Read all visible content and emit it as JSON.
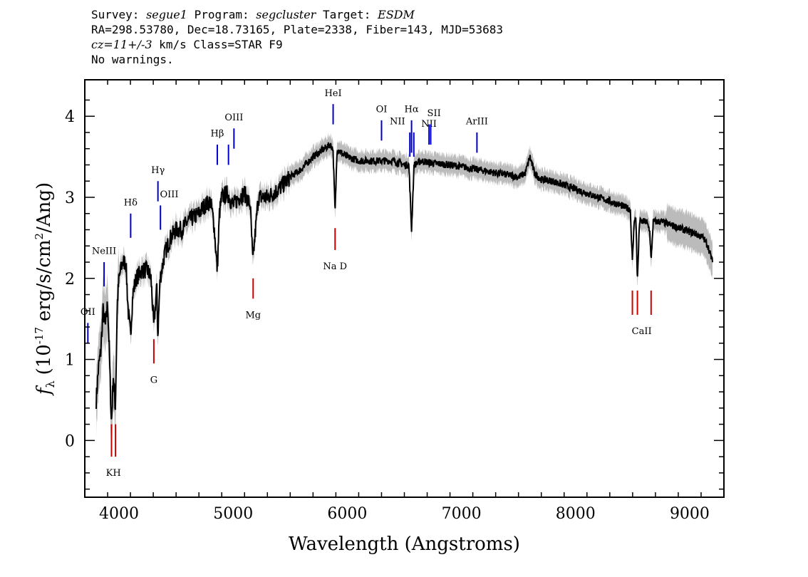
{
  "header": {
    "line1": {
      "survey_label": "Survey: ",
      "survey": "segue1",
      "program_label": " Program: ",
      "program": "segcluster",
      "target_label": " Target: ",
      "target": "ESDM"
    },
    "line2": "RA=298.53780, Dec=18.73165, Plate=2338, Fiber=143, MJD=53683",
    "line3": {
      "cz": "cz=11+/-3",
      "rest": " km/s Class=STAR F9"
    },
    "line4": "No warnings."
  },
  "chart_data": {
    "type": "line",
    "title": "",
    "xlabel": "Wavelength (Angstroms)",
    "ylabel_parts": {
      "f": "f",
      "sub": "λ",
      "pre": "(10",
      "exp": "-17",
      "mid": "erg/s/cm",
      "exp2": "2",
      "post": "/Ang)"
    },
    "xlim": [
      3700,
      9300
    ],
    "ylim": [
      -0.7,
      4.45
    ],
    "x_ticks": [
      4000,
      5000,
      6000,
      7000,
      8000,
      9000
    ],
    "y_ticks": [
      0,
      1,
      2,
      3,
      4
    ],
    "colors": {
      "spectrum": "#000000",
      "error": "#bbbbbb",
      "emission": "#0000cc",
      "absorption": "#cc0000"
    },
    "spectrum_points": [
      [
        3800,
        0.5
      ],
      [
        3820,
        0.9
      ],
      [
        3840,
        1.1
      ],
      [
        3860,
        1.6
      ],
      [
        3880,
        1.4
      ],
      [
        3900,
        1.7
      ],
      [
        3915,
        1.1
      ],
      [
        3933,
        0.2
      ],
      [
        3950,
        0.8
      ],
      [
        3968,
        0.4
      ],
      [
        3985,
        1.7
      ],
      [
        4000,
        2.0
      ],
      [
        4030,
        2.2
      ],
      [
        4060,
        2.2
      ],
      [
        4080,
        1.6
      ],
      [
        4101,
        1.3
      ],
      [
        4120,
        1.8
      ],
      [
        4150,
        2.0
      ],
      [
        4200,
        2.1
      ],
      [
        4250,
        2.1
      ],
      [
        4280,
        2.0
      ],
      [
        4305,
        1.4
      ],
      [
        4330,
        1.9
      ],
      [
        4340,
        1.3
      ],
      [
        4360,
        2.0
      ],
      [
        4400,
        2.3
      ],
      [
        4450,
        2.5
      ],
      [
        4500,
        2.6
      ],
      [
        4550,
        2.6
      ],
      [
        4600,
        2.7
      ],
      [
        4650,
        2.75
      ],
      [
        4700,
        2.8
      ],
      [
        4750,
        2.9
      ],
      [
        4800,
        2.95
      ],
      [
        4830,
        2.7
      ],
      [
        4861,
        2.1
      ],
      [
        4880,
        2.8
      ],
      [
        4900,
        3.0
      ],
      [
        4950,
        3.05
      ],
      [
        5000,
        2.9
      ],
      [
        5050,
        3.0
      ],
      [
        5100,
        3.05
      ],
      [
        5150,
        2.9
      ],
      [
        5172,
        2.2
      ],
      [
        5190,
        2.5
      ],
      [
        5220,
        3.0
      ],
      [
        5300,
        3.0
      ],
      [
        5400,
        3.1
      ],
      [
        5500,
        3.25
      ],
      [
        5600,
        3.35
      ],
      [
        5700,
        3.5
      ],
      [
        5750,
        3.55
      ],
      [
        5800,
        3.6
      ],
      [
        5850,
        3.65
      ],
      [
        5875,
        3.6
      ],
      [
        5893,
        2.8
      ],
      [
        5910,
        3.6
      ],
      [
        5950,
        3.55
      ],
      [
        6000,
        3.5
      ],
      [
        6100,
        3.45
      ],
      [
        6200,
        3.45
      ],
      [
        6300,
        3.45
      ],
      [
        6400,
        3.45
      ],
      [
        6500,
        3.4
      ],
      [
        6540,
        3.4
      ],
      [
        6563,
        2.6
      ],
      [
        6585,
        3.4
      ],
      [
        6650,
        3.45
      ],
      [
        6750,
        3.42
      ],
      [
        6900,
        3.4
      ],
      [
        7000,
        3.38
      ],
      [
        7100,
        3.35
      ],
      [
        7200,
        3.33
      ],
      [
        7300,
        3.3
      ],
      [
        7400,
        3.28
      ],
      [
        7500,
        3.25
      ],
      [
        7560,
        3.3
      ],
      [
        7600,
        3.5
      ],
      [
        7640,
        3.3
      ],
      [
        7700,
        3.22
      ],
      [
        7800,
        3.2
      ],
      [
        7900,
        3.15
      ],
      [
        8000,
        3.1
      ],
      [
        8100,
        3.05
      ],
      [
        8200,
        3.0
      ],
      [
        8300,
        2.95
      ],
      [
        8400,
        2.9
      ],
      [
        8480,
        2.85
      ],
      [
        8498,
        2.2
      ],
      [
        8515,
        2.75
      ],
      [
        8530,
        2.7
      ],
      [
        8542,
        1.95
      ],
      [
        8560,
        2.7
      ],
      [
        8620,
        2.7
      ],
      [
        8650,
        2.6
      ],
      [
        8662,
        2.2
      ],
      [
        8680,
        2.7
      ],
      [
        8750,
        2.7
      ],
      [
        8850,
        2.65
      ],
      [
        8950,
        2.6
      ],
      [
        9050,
        2.55
      ],
      [
        9120,
        2.5
      ],
      [
        9160,
        2.4
      ],
      [
        9200,
        2.2
      ]
    ],
    "emission_lines": [
      {
        "label": "OII",
        "x": 3727,
        "y1": 1.2,
        "y2": 1.45,
        "lx": 3727,
        "ly": 1.55
      },
      {
        "label": "NeIII",
        "x": 3869,
        "y1": 1.9,
        "y2": 2.2,
        "lx": 3869,
        "ly": 2.3
      },
      {
        "label": "Hδ",
        "x": 4102,
        "y1": 2.5,
        "y2": 2.8,
        "lx": 4102,
        "ly": 2.9
      },
      {
        "label": "Hγ",
        "x": 4341,
        "y1": 2.95,
        "y2": 3.2,
        "lx": 4341,
        "ly": 3.3
      },
      {
        "label": "OIII",
        "x": 4363,
        "y1": 2.6,
        "y2": 2.9,
        "lx": 4440,
        "ly": 3.0
      },
      {
        "label": "Hβ",
        "x": 4861,
        "y1": 3.4,
        "y2": 3.65,
        "lx": 4861,
        "ly": 3.75
      },
      {
        "label": "",
        "x": 4959,
        "y1": 3.4,
        "y2": 3.65
      },
      {
        "label": "OIII",
        "x": 5007,
        "y1": 3.6,
        "y2": 3.85,
        "lx": 5007,
        "ly": 3.95
      },
      {
        "label": "HeI",
        "x": 5876,
        "y1": 3.9,
        "y2": 4.15,
        "lx": 5876,
        "ly": 4.25
      },
      {
        "label": "OI",
        "x": 6300,
        "y1": 3.7,
        "y2": 3.95,
        "lx": 6300,
        "ly": 4.05
      },
      {
        "label": "NII",
        "x": 6548,
        "y1": 3.5,
        "y2": 3.8,
        "lx": 6440,
        "ly": 3.9
      },
      {
        "label": "Hα",
        "x": 6563,
        "y1": 3.55,
        "y2": 3.95,
        "lx": 6563,
        "ly": 4.05
      },
      {
        "label": "",
        "x": 6583,
        "y1": 3.5,
        "y2": 3.8
      },
      {
        "label": "NII",
        "x": 6716,
        "y1": 3.65,
        "y2": 3.9,
        "lx": 6716,
        "ly": 3.87
      },
      {
        "label": "SII",
        "x": 6731,
        "y1": 3.65,
        "y2": 3.9,
        "lx": 6760,
        "ly": 4.0
      },
      {
        "label": "ArIII",
        "x": 7136,
        "y1": 3.55,
        "y2": 3.8,
        "lx": 7136,
        "ly": 3.9
      }
    ],
    "absorption_lines": [
      {
        "label": "KH",
        "xs": [
          3934,
          3969
        ],
        "y1": -0.2,
        "y2": 0.2,
        "lx": 3951,
        "ly": -0.35
      },
      {
        "label": "G",
        "xs": [
          4305
        ],
        "y1": 0.95,
        "y2": 1.25,
        "lx": 4305,
        "ly": 0.8
      },
      {
        "label": "Mg",
        "xs": [
          5175
        ],
        "y1": 1.75,
        "y2": 2.0,
        "lx": 5175,
        "ly": 1.6
      },
      {
        "label": "Na D",
        "xs": [
          5893
        ],
        "y1": 2.35,
        "y2": 2.62,
        "lx": 5893,
        "ly": 2.2
      },
      {
        "label": "CaII",
        "xs": [
          8498,
          8542,
          8662
        ],
        "y1": 1.55,
        "y2": 1.85,
        "lx": 8580,
        "ly": 1.4
      }
    ]
  }
}
